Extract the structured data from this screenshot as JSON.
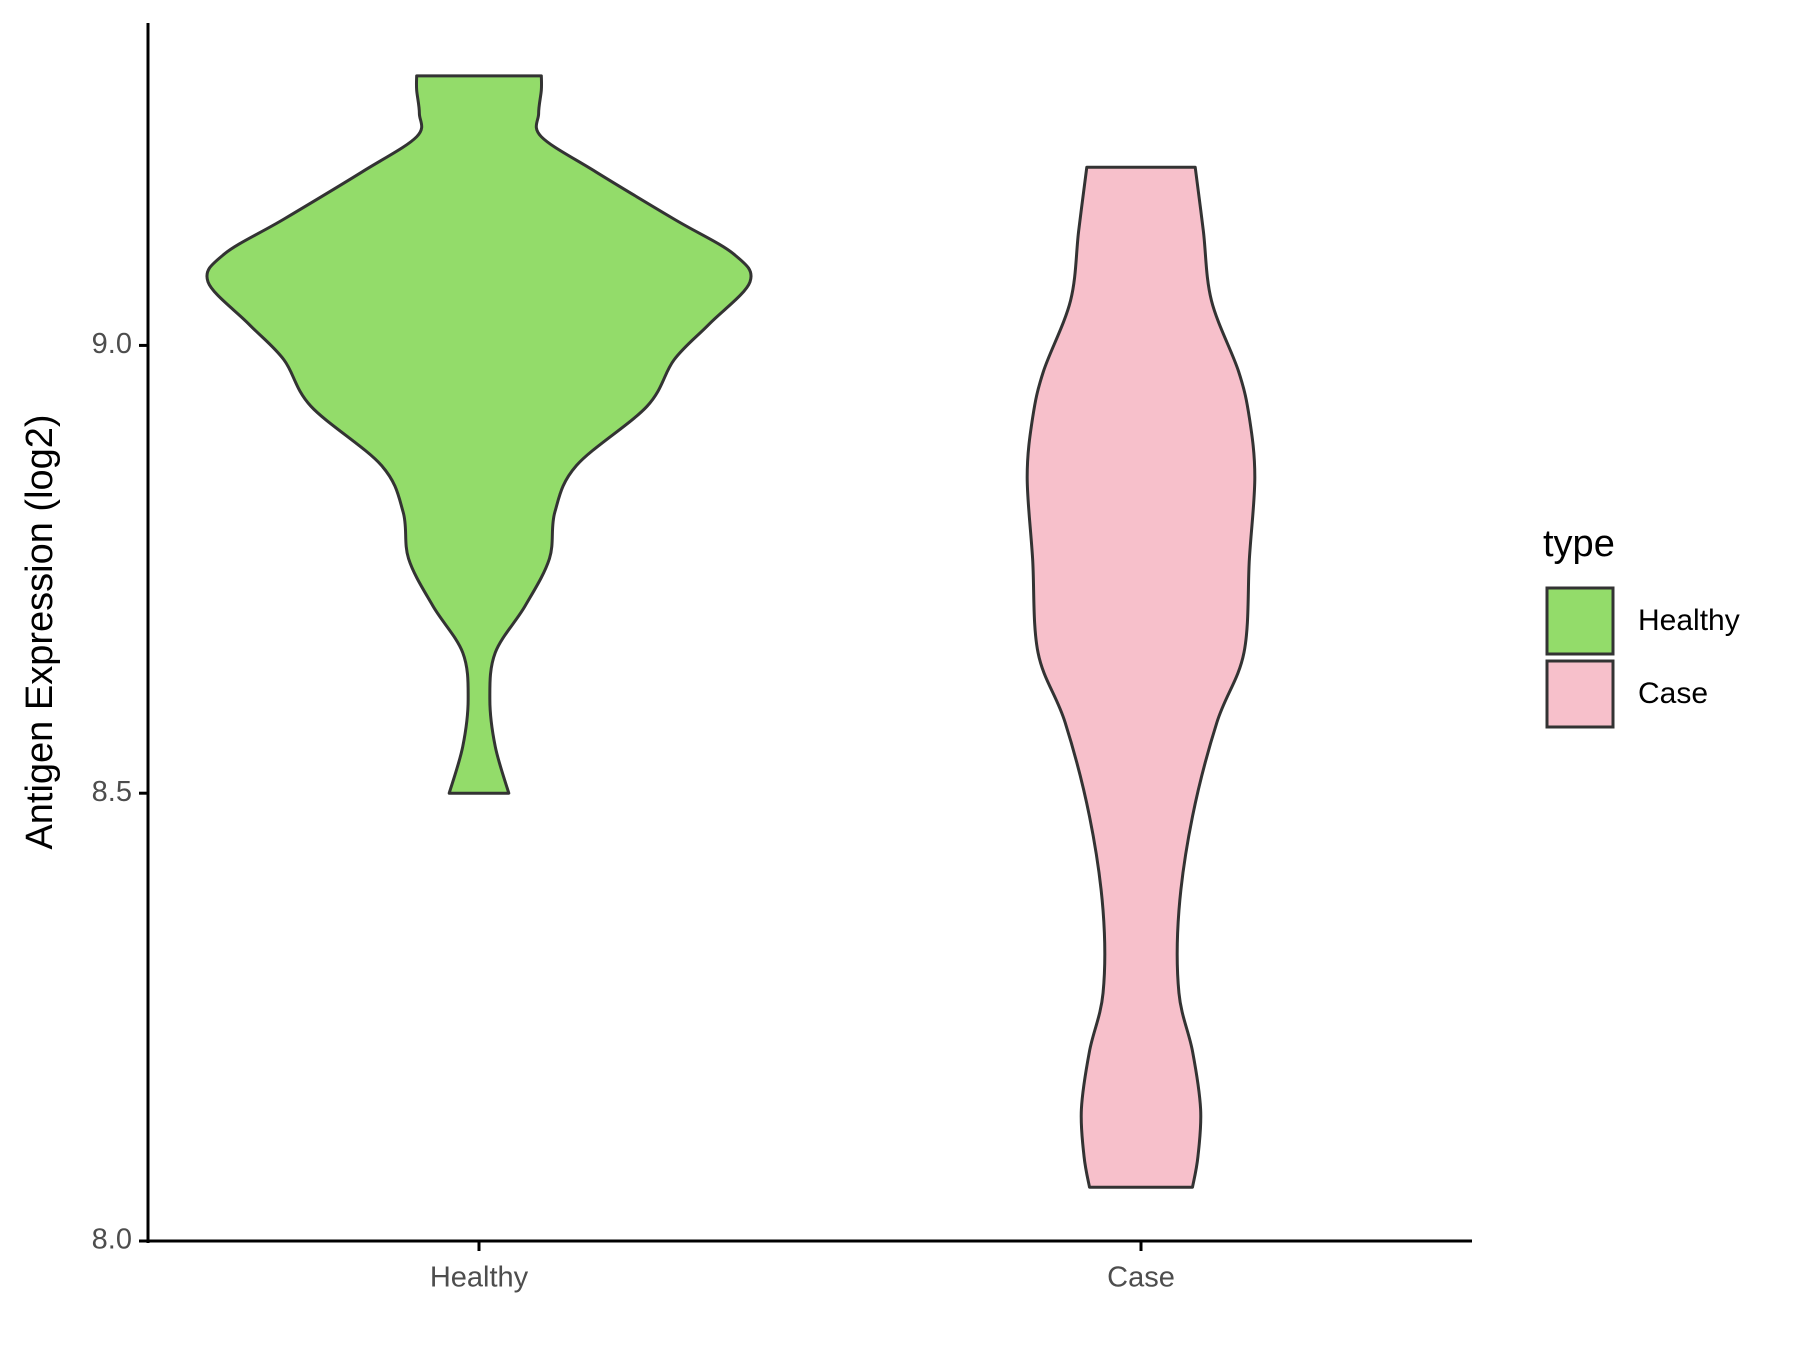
{
  "chart_data": {
    "type": "violin",
    "y_label": "Antigen Expression (log2)",
    "categories": [
      "Healthy",
      "Case"
    ],
    "legend_title": "type",
    "legend_position": "right",
    "ylim": [
      8.0,
      9.36
    ],
    "yticks": [
      {
        "value": 8,
        "label": "8.0"
      },
      {
        "value": 8.5,
        "label": "8.5"
      },
      {
        "value": 9,
        "label": "9.0"
      }
    ],
    "grid": false,
    "series": [
      {
        "name": "Healthy",
        "color": "#93dc6a",
        "y": [
          9.301,
          9.285,
          9.259,
          9.233,
          9.194,
          9.141,
          9.102,
          9.071,
          9.024,
          8.984,
          8.932,
          8.866,
          8.814,
          8.762,
          8.709,
          8.657,
          8.605,
          8.552,
          8.5
        ],
        "width": [
          0.23,
          0.23,
          0.22,
          0.23,
          0.43,
          0.72,
          0.94,
          1.0,
          0.85,
          0.72,
          0.62,
          0.36,
          0.28,
          0.26,
          0.17,
          0.06,
          0.04,
          0.06,
          0.11
        ]
      },
      {
        "name": "Case",
        "color": "#f7c0cb",
        "y": [
          9.199,
          9.128,
          9.05,
          8.971,
          8.919,
          8.853,
          8.762,
          8.657,
          8.579,
          8.474,
          8.369,
          8.277,
          8.212,
          8.147,
          8.094,
          8.06
        ],
        "width": [
          0.2,
          0.23,
          0.26,
          0.36,
          0.4,
          0.42,
          0.4,
          0.38,
          0.28,
          0.19,
          0.14,
          0.14,
          0.19,
          0.22,
          0.21,
          0.19
        ]
      }
    ]
  }
}
